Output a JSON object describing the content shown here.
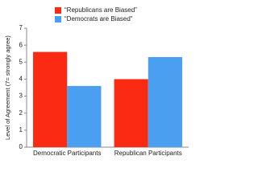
{
  "chart_data": {
    "type": "bar",
    "categories": [
      "Democratic Participants",
      "Republican Participants"
    ],
    "series": [
      {
        "name": "“Republicans are Biased”",
        "color": "#fb2a12",
        "values": [
          5.6,
          4.0
        ]
      },
      {
        "name": "“Democrats are Biased”",
        "color": "#4a9ff0",
        "values": [
          3.6,
          5.3
        ]
      }
    ],
    "y_label": "Level of Agreement (7= strongly agree)",
    "ylim": [
      0,
      7
    ],
    "yticks": [
      0,
      1,
      2,
      3,
      4,
      5,
      6,
      7
    ],
    "grid": false,
    "legend": "top"
  }
}
